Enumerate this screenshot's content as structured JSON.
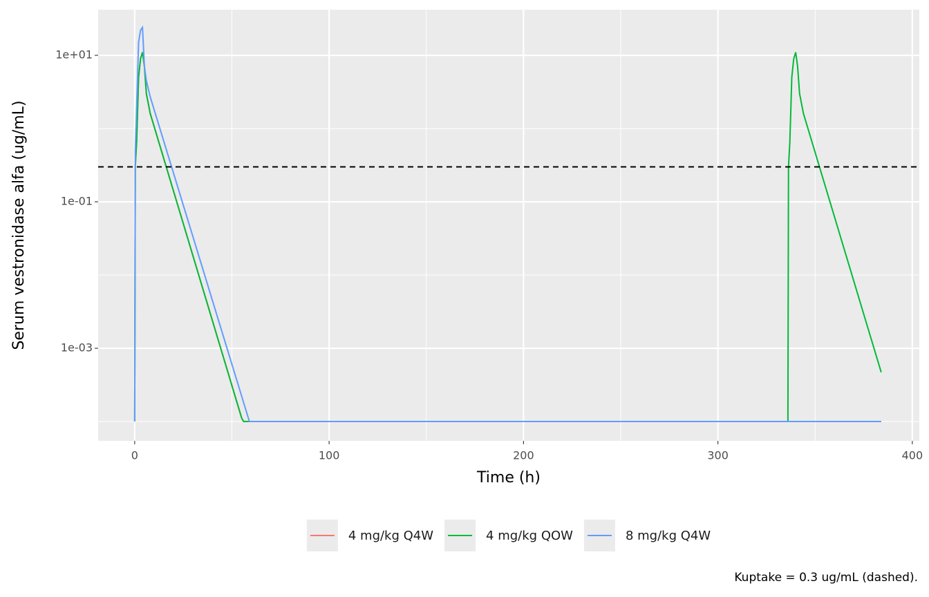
{
  "chart_data": {
    "type": "line",
    "x_label": "Time (h)",
    "y_label": "Serum vestronidase alfa (ug/mL)",
    "caption": "Kuptake = 0.3 ug/mL (dashed).",
    "reference_line": {
      "value": 0.3,
      "color": "#000000",
      "dashed": true
    },
    "xlim": [
      -18.8,
      403.6
    ],
    "xticks": [
      0,
      100,
      200,
      300,
      400
    ],
    "x_minor_ticks": [
      50,
      150,
      250,
      350
    ],
    "ylim": [
      5.45e-05,
      42
    ],
    "y_log_scale": true,
    "yticks": [
      {
        "value": 10,
        "label": "1e+01"
      },
      {
        "value": 0.1,
        "label": "1e-01"
      },
      {
        "value": 0.001,
        "label": "1e-03"
      }
    ],
    "y_minor_ticks": [
      1,
      0.01,
      0.0001
    ],
    "grid": true,
    "legend_position": "bottom",
    "series": [
      {
        "name": "4 mg/kg Q4W",
        "color": "#f8766d",
        "x": [
          0,
          0.3,
          1,
          2,
          3,
          4,
          5,
          6,
          8,
          55,
          56,
          384
        ],
        "values": [
          0.0001,
          0.3,
          0.66,
          5,
          9,
          11,
          7,
          3,
          1.6,
          0.000112,
          0.0001,
          0.0001
        ]
      },
      {
        "name": "4 mg/kg QOW",
        "color": "#00ba38",
        "x": [
          0,
          0.3,
          1,
          2,
          3,
          4,
          5,
          6,
          8,
          55,
          56,
          336,
          336.3,
          337,
          338,
          339,
          340,
          341,
          342,
          344,
          384
        ],
        "values": [
          0.0001,
          0.3,
          0.66,
          5,
          9,
          11,
          7,
          3,
          1.6,
          0.000112,
          0.0001,
          0.0001,
          0.3,
          0.66,
          5,
          9,
          11,
          7,
          3,
          1.6,
          0.00047
        ]
      },
      {
        "name": "8 mg/kg Q4W",
        "color": "#619cff",
        "x": [
          0,
          0.3,
          1,
          2,
          3,
          4,
          5,
          6,
          8,
          59,
          60,
          384
        ],
        "values": [
          0.0001,
          0.5,
          2,
          15,
          22,
          24,
          7,
          4.5,
          2.7,
          0.0001,
          0.0001,
          0.0001
        ]
      }
    ]
  }
}
